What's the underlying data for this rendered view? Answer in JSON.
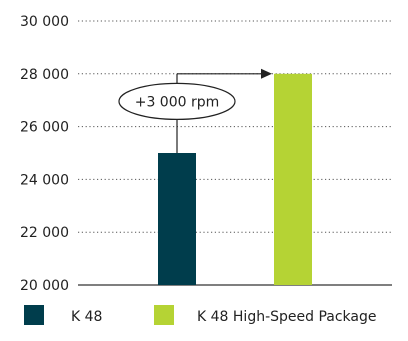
{
  "chart_data": {
    "type": "bar",
    "categories": [
      "K 48",
      "K 48 High-Speed Package"
    ],
    "values": [
      25000,
      28000
    ],
    "colors": [
      "#003d4c",
      "#b5d334"
    ],
    "ylim": [
      20000,
      30000
    ],
    "yticks": [
      20000,
      22000,
      24000,
      26000,
      28000,
      30000
    ],
    "ytick_labels": [
      "20 000",
      "22 000",
      "24 000",
      "26 000",
      "28 000",
      "30 000"
    ],
    "grid": "dotted horizontal",
    "legend": {
      "placement": "bottom",
      "entries": [
        "K 48",
        "K 48 High-Speed Package"
      ]
    },
    "annotation": {
      "text": "+3 000 rpm",
      "from": 25000,
      "to": 28000
    }
  }
}
